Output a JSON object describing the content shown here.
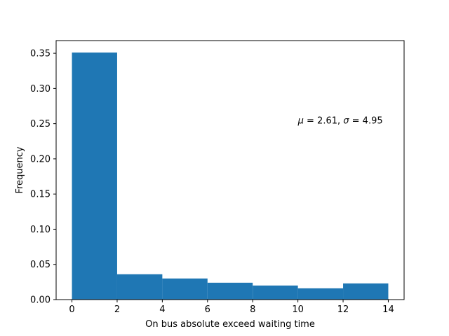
{
  "chart_data": {
    "type": "bar",
    "chart_kind": "histogram",
    "title": "",
    "xlabel": "On bus absolute exceed waiting time",
    "ylabel": "Frequency",
    "xlim": [
      -0.7,
      14.7
    ],
    "ylim": [
      0,
      0.368
    ],
    "bin_edges": [
      0,
      2,
      4,
      6,
      8,
      10,
      12,
      14
    ],
    "values": [
      0.351,
      0.036,
      0.03,
      0.024,
      0.02,
      0.016,
      0.023
    ],
    "bar_color": "#1f77b4",
    "x_ticks": [
      0,
      2,
      4,
      6,
      8,
      10,
      12,
      14
    ],
    "x_tick_labels": [
      "0",
      "2",
      "4",
      "6",
      "8",
      "10",
      "12",
      "14"
    ],
    "y_ticks": [
      0.0,
      0.05,
      0.1,
      0.15,
      0.2,
      0.25,
      0.3,
      0.35
    ],
    "y_tick_labels": [
      "0.00",
      "0.05",
      "0.10",
      "0.15",
      "0.20",
      "0.25",
      "0.30",
      "0.35"
    ],
    "grid": false,
    "annotation": {
      "mu_symbol": "μ",
      "mu_text": " = 2.61,  ",
      "sigma_symbol": "σ",
      "sigma_text": " = 4.95",
      "x": 10,
      "y": 0.25
    }
  }
}
